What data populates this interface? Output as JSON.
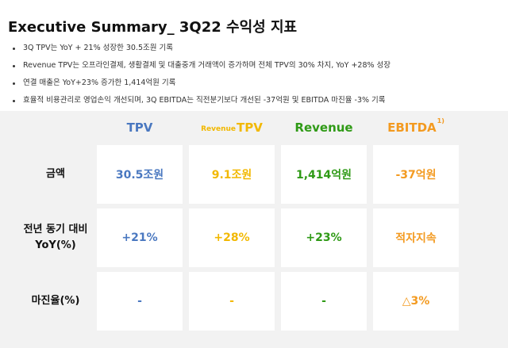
{
  "title": "Executive Summary_ 3Q22 수익성 지표",
  "bullets": [
    "3Q TPV는 YoY + 21% 성장한 30.5조원 기록",
    "Revenue TPV는 오프라인결제, 생활결제 및 대출중개 거래액이 증가하며 전체 TPV의 30% 차지, YoY +28% 성장",
    "연결 매출은 YoY+23% 증가한 1,414억원 기록",
    "효율적 비용관리로 영업손익 개선되며, 3Q EBITDA는 직전분기보다 개선된 -37억원 및 EBITDA 마진율 -3% 기록"
  ],
  "columns": [
    {
      "label": "TPV",
      "prefix": "",
      "sup": "",
      "color": "#4a78c0"
    },
    {
      "label": "TPV",
      "prefix": "Revenue",
      "sup": "",
      "color": "#f2b800"
    },
    {
      "label": "Revenue",
      "prefix": "",
      "sup": "",
      "color": "#2f9a16"
    },
    {
      "label": "EBITDA",
      "prefix": "",
      "sup": "1)",
      "color": "#f39a20"
    }
  ],
  "rows": [
    {
      "label_lines": [
        "금액"
      ],
      "values": [
        "30.5조원",
        "9.1조원",
        "1,414억원",
        "-37억원"
      ]
    },
    {
      "label_lines": [
        "전년 동기 대비",
        "YoY(%)"
      ],
      "values": [
        "+21%",
        "+28%",
        "+23%",
        "적자지속"
      ]
    },
    {
      "label_lines": [
        "마진율(%)"
      ],
      "values": [
        "-",
        "-",
        "-",
        "△3%"
      ]
    }
  ]
}
